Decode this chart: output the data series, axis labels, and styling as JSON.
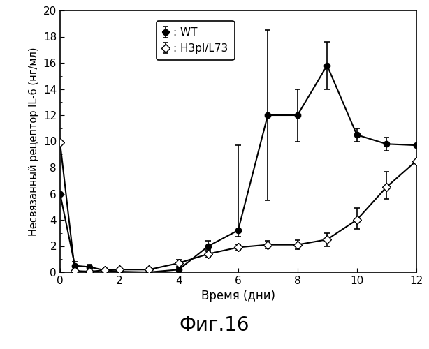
{
  "wt_x": [
    0,
    0.5,
    1,
    1.5,
    2,
    3,
    4,
    5,
    6,
    7,
    8,
    9,
    10,
    11,
    12
  ],
  "wt_y": [
    6.0,
    0.5,
    0.4,
    0.15,
    0.05,
    0.0,
    0.2,
    2.0,
    3.2,
    12.0,
    12.0,
    15.8,
    10.5,
    9.8,
    9.7
  ],
  "wt_yerr_lo": [
    0.0,
    0.3,
    0.2,
    0.0,
    0.0,
    0.0,
    0.15,
    0.4,
    0.5,
    6.5,
    2.0,
    1.8,
    0.5,
    0.5,
    0.0
  ],
  "wt_yerr_hi": [
    0.0,
    0.3,
    0.2,
    0.0,
    0.0,
    0.0,
    0.15,
    0.4,
    6.5,
    6.5,
    2.0,
    1.8,
    0.5,
    0.5,
    0.0
  ],
  "h3_x": [
    0,
    0.5,
    1,
    1.5,
    2,
    3,
    4,
    5,
    6,
    7,
    8,
    9,
    10,
    11,
    12
  ],
  "h3_y": [
    9.9,
    0.1,
    0.05,
    0.15,
    0.2,
    0.2,
    0.7,
    1.4,
    1.9,
    2.1,
    2.1,
    2.5,
    4.0,
    6.5,
    8.5
  ],
  "h3_yerr_lo": [
    0.0,
    0.1,
    0.05,
    0.1,
    0.1,
    0.12,
    0.25,
    0.3,
    0.25,
    0.3,
    0.35,
    0.5,
    0.7,
    0.9,
    0.0
  ],
  "h3_yerr_hi": [
    0.0,
    0.1,
    0.05,
    0.1,
    0.1,
    0.12,
    0.25,
    0.3,
    0.25,
    0.3,
    0.35,
    0.5,
    0.9,
    1.2,
    0.0
  ],
  "title": "Фиг.16",
  "xlabel": "Время (дни)",
  "ylabel": "Несвязанный рецептор IL-6 (нг/мл)",
  "legend_wt": ": WT",
  "legend_h3": ": H3pl/L73",
  "xlim": [
    0,
    12
  ],
  "ylim": [
    0,
    20
  ],
  "yticks": [
    0,
    2,
    4,
    6,
    8,
    10,
    12,
    14,
    16,
    18,
    20
  ],
  "xticks": [
    0,
    2,
    4,
    6,
    8,
    10,
    12
  ],
  "background_color": "#ffffff",
  "line_color": "#000000"
}
